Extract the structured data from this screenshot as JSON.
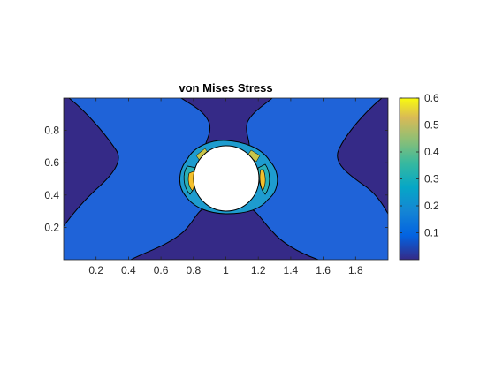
{
  "chart_data": {
    "type": "heatmap",
    "plot_kind": "filled contour",
    "title": "von Mises Stress",
    "xlabel": "",
    "ylabel": "",
    "xlim": [
      0,
      2
    ],
    "ylim": [
      0,
      1
    ],
    "x_ticks": [
      0.2,
      0.4,
      0.6,
      0.8,
      1,
      1.2,
      1.4,
      1.6,
      1.8
    ],
    "x_tick_labels": [
      "0.2",
      "0.4",
      "0.6",
      "0.8",
      "1",
      "1.2",
      "1.4",
      "1.6",
      "1.8"
    ],
    "y_ticks": [
      0.2,
      0.4,
      0.6,
      0.8
    ],
    "y_tick_labels": [
      "0.2",
      "0.4",
      "0.6",
      "0.8"
    ],
    "colorbar": {
      "limits": [
        0,
        0.6
      ],
      "ticks": [
        0.1,
        0.2,
        0.3,
        0.4,
        0.5,
        0.6
      ],
      "tick_labels": [
        "0.1",
        "0.2",
        "0.3",
        "0.4",
        "0.5",
        "0.6"
      ],
      "colormap": "parula"
    },
    "hole": {
      "center": [
        1,
        0.5
      ],
      "radius": 0.2
    },
    "regions": [
      {
        "level": 0.08,
        "color": "#1f63d8",
        "role": "background stress field"
      },
      {
        "level": 0.02,
        "color": "#352a87",
        "role": "low-stress lobes (left, right, top, bottom)"
      },
      {
        "level": 0.2,
        "color": "#1e9ccf",
        "role": "concentration ring around hole"
      },
      {
        "level": 0.3,
        "color": "#2ab0b8",
        "role": "concentration near hole equator"
      },
      {
        "level": 0.5,
        "color": "#f4c02c",
        "role": "peak stress at hole sides"
      }
    ],
    "grid": false,
    "legend": "colorbar-right"
  }
}
